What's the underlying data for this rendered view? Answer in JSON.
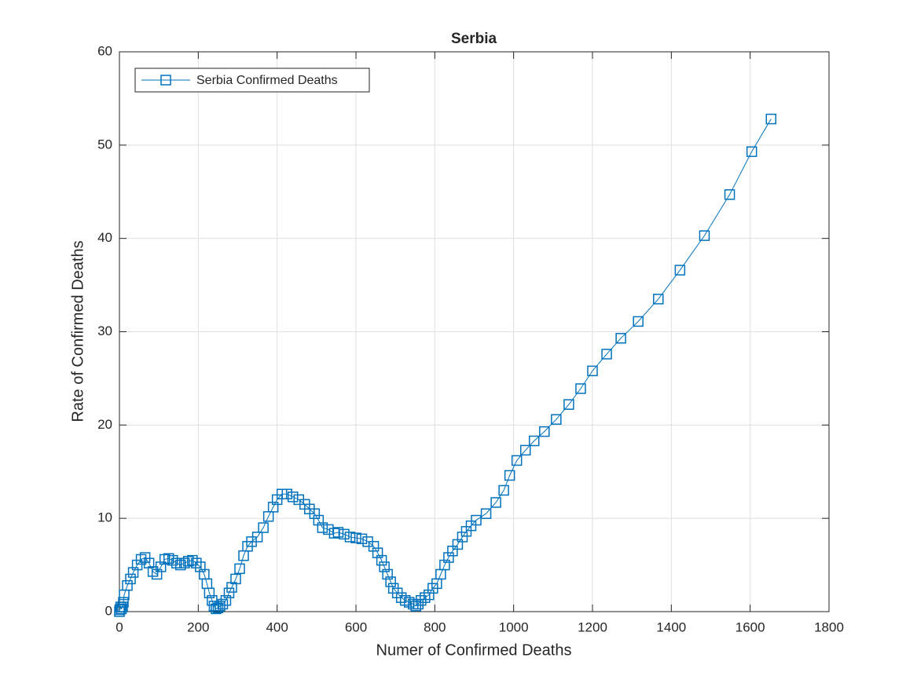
{
  "chart_data": {
    "type": "line",
    "title": "Serbia",
    "xlabel": "Numer of Confirmed Deaths",
    "ylabel": "Rate of Confirmed Deaths",
    "xlim": [
      0,
      1800
    ],
    "ylim": [
      0,
      60
    ],
    "xticks": [
      0,
      200,
      400,
      600,
      800,
      1000,
      1200,
      1400,
      1600,
      1800
    ],
    "yticks": [
      0,
      10,
      20,
      30,
      40,
      50,
      60
    ],
    "grid": true,
    "legend": "northwest",
    "x": [
      0,
      1,
      3,
      5,
      8,
      10,
      12,
      20,
      28,
      35,
      45,
      55,
      65,
      75,
      85,
      95,
      105,
      115,
      125,
      135,
      145,
      155,
      165,
      175,
      185,
      195,
      205,
      215,
      222,
      228,
      235,
      240,
      245,
      250,
      255,
      262,
      270,
      278,
      285,
      295,
      305,
      315,
      325,
      335,
      350,
      365,
      378,
      390,
      400,
      412,
      425,
      440,
      455,
      470,
      482,
      495,
      505,
      515,
      530,
      545,
      555,
      570,
      585,
      600,
      615,
      630,
      645,
      655,
      665,
      672,
      680,
      688,
      695,
      705,
      715,
      725,
      735,
      745,
      752,
      758,
      765,
      775,
      785,
      795,
      805,
      815,
      825,
      835,
      845,
      858,
      870,
      880,
      892,
      905,
      930,
      955,
      975,
      990,
      1008,
      1030,
      1052,
      1078,
      1108,
      1140,
      1170,
      1200,
      1236,
      1272,
      1316,
      1367,
      1422,
      1484,
      1548,
      1604,
      1653
    ],
    "series": [
      {
        "name": "Serbia Confirmed Deaths",
        "color": "#0072bd",
        "values": [
          0,
          0.2,
          0.5,
          0.3,
          0.5,
          1,
          1.8,
          2.8,
          3.5,
          4.2,
          5,
          5.6,
          5.8,
          5.2,
          4.3,
          4,
          4.8,
          5.6,
          5.7,
          5.5,
          5.2,
          5,
          5.2,
          5.4,
          5.5,
          5.2,
          4.8,
          4,
          3,
          2,
          1.2,
          0.6,
          0.3,
          0.4,
          0.6,
          0.8,
          1.2,
          2,
          2.6,
          3.5,
          4.6,
          6,
          7,
          7.5,
          8,
          9,
          10.2,
          11.2,
          12,
          12.6,
          12.6,
          12.3,
          12,
          11.5,
          11,
          10.5,
          9.8,
          9,
          8.8,
          8.4,
          8.5,
          8.3,
          8,
          7.9,
          7.8,
          7.5,
          7,
          6.3,
          5.5,
          4.8,
          4,
          3.2,
          2.5,
          2,
          1.5,
          1.2,
          1,
          0.8,
          0.6,
          0.8,
          1.2,
          1.5,
          1.8,
          2.5,
          3,
          4,
          5,
          5.8,
          6.5,
          7.2,
          8,
          8.6,
          9.2,
          9.8,
          10.5,
          11.7,
          13,
          14.6,
          16.2,
          17.3,
          18.3,
          19.3,
          20.6,
          22.2,
          23.9,
          25.8,
          27.6,
          29.3,
          31.1,
          33.5,
          36.6,
          40.3,
          44.7,
          49.3,
          52.8
        ]
      }
    ]
  }
}
